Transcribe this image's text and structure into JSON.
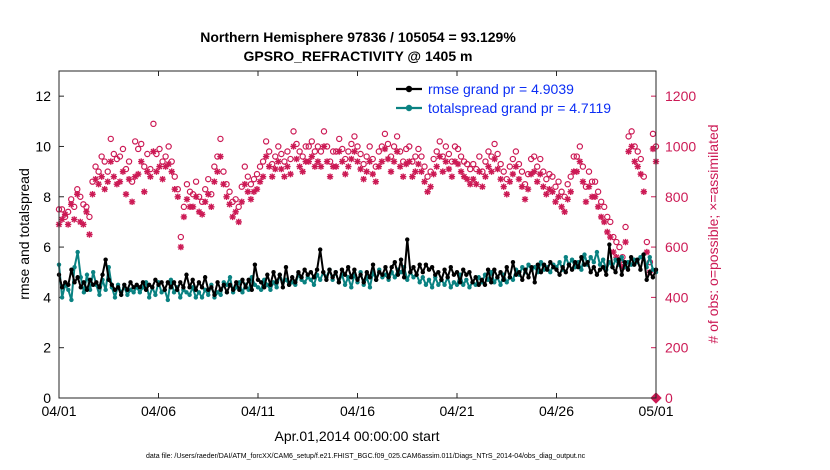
{
  "chart_data": {
    "type": "line",
    "title_line1": "Northern Hemisphere 97836 / 105054 = 93.129%",
    "title_line2": "GPSRO_REFRACTIVITY @ 1405 m",
    "xlabel": "Apr.01,2014 00:00:00 start",
    "ylabel_left": "rmse and totalspread",
    "ylabel_right": "# of obs: o=possible; ×=assimilated",
    "footer": "data file: /Users/raeder/DAI/ATM_forcXX/CAM6_setup/f.e21.FHIST_BGC.f09_025.CAM6assim.011/Diags_NTrS_2014-04/obs_diag_output.nc",
    "xlim": [
      0,
      30
    ],
    "ylim_left": [
      0,
      13
    ],
    "ylim_right": [
      0,
      1300
    ],
    "x_ticks": [
      {
        "v": 0,
        "label": "04/01"
      },
      {
        "v": 5,
        "label": "04/06"
      },
      {
        "v": 10,
        "label": "04/11"
      },
      {
        "v": 15,
        "label": "04/16"
      },
      {
        "v": 20,
        "label": "04/21"
      },
      {
        "v": 25,
        "label": "04/26"
      },
      {
        "v": 30,
        "label": "05/01"
      }
    ],
    "y_ticks_left": [
      "0",
      "2",
      "4",
      "6",
      "8",
      "10",
      "12"
    ],
    "y_ticks_right": [
      "0",
      "200",
      "400",
      "600",
      "800",
      "1000",
      "1200"
    ],
    "colors": {
      "rmse": "#000000",
      "spread": "#0a8282",
      "obs": "#cc1a55",
      "legend_text": "#0b2ef5"
    },
    "legend": [
      {
        "label": "rmse grand pr = 4.9039"
      },
      {
        "label": "totalspread grand pr = 4.7119"
      }
    ],
    "series_rmse": [
      4.9,
      4.4,
      4.6,
      4.5,
      5.1,
      4.6,
      4.8,
      4.4,
      4.6,
      4.3,
      4.7,
      4.5,
      4.6,
      4.4,
      4.9,
      5.5,
      4.7,
      4.5,
      4.3,
      4.4,
      4.1,
      4.5,
      4.3,
      4.6,
      4.4,
      4.5,
      4.4,
      4.6,
      4.3,
      4.5,
      4.4,
      4.7,
      4.5,
      4.6,
      4.3,
      4.6,
      4.4,
      4.6,
      4.3,
      4.6,
      4.4,
      4.9,
      4.4,
      4.7,
      4.3,
      4.6,
      4.4,
      4.8,
      4.3,
      4.4,
      4.1,
      4.6,
      4.3,
      4.5,
      4.2,
      4.5,
      4.3,
      4.6,
      4.3,
      4.7,
      4.4,
      4.7,
      4.3,
      5.3,
      4.7,
      4.6,
      4.4,
      4.9,
      4.5,
      5.0,
      4.6,
      4.9,
      4.4,
      5.2,
      4.5,
      4.8,
      4.6,
      5.0,
      4.8,
      5.1,
      4.9,
      5.0,
      4.8,
      5.1,
      5.9,
      5.0,
      4.7,
      5.1,
      4.8,
      5.0,
      4.6,
      5.1,
      4.9,
      5.2,
      4.8,
      5.1,
      4.7,
      4.9,
      4.6,
      5.0,
      4.8,
      5.3,
      4.7,
      5.0,
      4.9,
      5.2,
      4.8,
      5.2,
      5.4,
      4.9,
      5.5,
      4.8,
      6.3,
      5.0,
      5.2,
      4.9,
      5.3,
      5.0,
      5.3,
      5.1,
      5.2,
      4.9,
      5.0,
      4.7,
      5.1,
      4.8,
      5.2,
      4.9,
      5.0,
      4.6,
      5.1,
      4.9,
      5.0,
      4.6,
      4.8,
      4.5,
      4.7,
      4.5,
      5.1,
      4.6,
      5.1,
      4.8,
      5.0,
      4.7,
      5.2,
      4.8,
      5.4,
      4.9,
      5.0,
      4.7,
      5.1,
      4.8,
      5.2,
      4.6,
      5.3,
      5.0,
      5.3,
      5.1,
      5.4,
      5.2,
      5.1,
      4.9,
      5.2,
      5.0,
      5.3,
      5.1,
      5.4,
      5.2,
      5.6,
      5.3,
      5.4,
      5.0,
      5.2,
      4.9,
      5.1,
      5.2,
      4.9,
      6.1,
      5.2,
      5.0,
      5.5,
      4.9,
      5.4,
      5.1,
      5.6,
      5.3,
      5.5,
      5.1,
      5.7,
      4.7,
      5.0,
      4.8,
      5.1
    ],
    "series_spread": [
      5.3,
      4.0,
      4.5,
      4.3,
      3.9,
      5.2,
      5.8,
      4.8,
      4.2,
      4.9,
      4.3,
      5.0,
      4.5,
      4.1,
      4.7,
      4.3,
      5.2,
      4.4,
      4.0,
      4.5,
      4.2,
      4.4,
      4.1,
      4.3,
      4.2,
      4.4,
      4.2,
      4.4,
      4.6,
      4.0,
      4.4,
      4.1,
      4.6,
      4.2,
      4.3,
      3.9,
      4.7,
      4.2,
      4.4,
      4.0,
      4.3,
      4.2,
      4.1,
      4.4,
      4.0,
      4.2,
      4.0,
      4.3,
      4.1,
      4.5,
      4.0,
      4.2,
      4.1,
      4.6,
      4.5,
      4.8,
      4.2,
      4.4,
      4.6,
      4.2,
      4.5,
      4.3,
      4.8,
      4.5,
      4.4,
      4.3,
      4.7,
      4.5,
      4.3,
      4.6,
      4.4,
      4.9,
      4.6,
      4.7,
      4.5,
      4.6,
      4.5,
      4.9,
      4.7,
      4.6,
      4.8,
      4.7,
      4.5,
      4.9,
      4.7,
      5.0,
      4.8,
      5.1,
      4.7,
      5.0,
      4.6,
      4.9,
      4.5,
      4.8,
      4.4,
      4.9,
      4.6,
      5.0,
      4.5,
      4.8,
      4.4,
      5.0,
      4.7,
      5.1,
      4.8,
      4.9,
      4.7,
      5.0,
      4.8,
      5.1,
      5.0,
      5.2,
      4.7,
      5.0,
      4.8,
      4.9,
      4.6,
      4.8,
      4.5,
      4.7,
      4.4,
      4.8,
      4.5,
      4.7,
      4.5,
      4.8,
      4.4,
      4.6,
      4.5,
      4.9,
      4.5,
      4.7,
      4.4,
      4.6,
      4.5,
      4.8,
      4.6,
      4.9,
      4.7,
      5.0,
      4.6,
      4.8,
      4.5,
      4.9,
      4.6,
      4.8,
      4.7,
      5.1,
      4.9,
      5.2,
      5.0,
      5.3,
      5.1,
      5.2,
      5.0,
      5.4,
      5.1,
      5.2,
      5.0,
      5.3,
      5.2,
      5.4,
      5.1,
      5.6,
      5.3,
      5.5,
      5.2,
      5.4,
      5.1,
      5.7,
      5.3,
      5.6,
      5.4,
      5.8,
      5.3,
      5.5,
      5.1,
      5.4,
      5.2,
      5.5,
      5.3,
      5.6,
      5.2,
      5.4,
      5.3,
      5.5,
      5.4,
      5.6,
      5.7,
      5.2,
      5.6,
      5.1,
      5.0
    ],
    "series_possible": [
      750,
      750,
      720,
      740,
      790,
      760,
      830,
      800,
      770,
      760,
      720,
      860,
      920,
      900,
      960,
      940,
      900,
      1030,
      970,
      950,
      960,
      990,
      910,
      940,
      860,
      1020,
      990,
      1010,
      920,
      970,
      910,
      1090,
      970,
      990,
      940,
      960,
      1000,
      940,
      880,
      830,
      640,
      760,
      850,
      820,
      810,
      860,
      800,
      780,
      830,
      870,
      810,
      920,
      960,
      1030,
      900,
      850,
      820,
      780,
      790,
      760,
      840,
      920,
      880,
      850,
      870,
      890,
      920,
      940,
      1020,
      980,
      930,
      960,
      1000,
      970,
      940,
      980,
      950,
      1060,
      1010,
      980,
      960,
      1000,
      1000,
      1020,
      980,
      1000,
      980,
      1060,
      1000,
      940,
      980,
      980,
      1030,
      990,
      950,
      980,
      1010,
      1040,
      1000,
      970,
      930,
      960,
      1000,
      950,
      920,
      980,
      1000,
      1050,
      1010,
      960,
      1000,
      1040,
      980,
      940,
      990,
      1000,
      940,
      960,
      990,
      960,
      920,
      880,
      900,
      950,
      980,
      1020,
      960,
      1000,
      970,
      940,
      1000,
      990,
      960,
      940,
      930,
      910,
      930,
      910,
      960,
      900,
      940,
      980,
      960,
      1010,
      970,
      930,
      900,
      870,
      920,
      950,
      980,
      930,
      900,
      850,
      890,
      950,
      960,
      920,
      950,
      900,
      870,
      890,
      880,
      840,
      860,
      820,
      800,
      850,
      880,
      960,
      960,
      1000,
      920,
      840,
      900,
      860,
      860,
      820,
      780,
      760,
      720,
      700,
      640,
      620,
      600,
      560,
      680,
      1040,
      1060,
      1000,
      980,
      950,
      880,
      620,
      540,
      1050,
      1000
    ],
    "series_assimilated": [
      690,
      710,
      730,
      690,
      770,
      710,
      810,
      700,
      690,
      740,
      650,
      810,
      870,
      850,
      880,
      830,
      860,
      940,
      880,
      850,
      860,
      900,
      810,
      870,
      780,
      880,
      890,
      940,
      820,
      900,
      880,
      980,
      900,
      920,
      870,
      920,
      930,
      900,
      830,
      800,
      600,
      720,
      790,
      760,
      760,
      800,
      740,
      730,
      780,
      810,
      760,
      860,
      900,
      960,
      850,
      800,
      770,
      720,
      740,
      700,
      780,
      850,
      820,
      790,
      820,
      830,
      860,
      880,
      960,
      920,
      880,
      910,
      940,
      910,
      880,
      920,
      890,
      1000,
      950,
      920,
      900,
      940,
      940,
      960,
      920,
      940,
      920,
      1000,
      940,
      880,
      920,
      920,
      980,
      940,
      890,
      920,
      950,
      980,
      940,
      910,
      870,
      900,
      940,
      890,
      860,
      920,
      940,
      990,
      950,
      900,
      940,
      980,
      920,
      880,
      930,
      940,
      880,
      900,
      930,
      900,
      860,
      820,
      840,
      890,
      920,
      960,
      900,
      940,
      910,
      880,
      940,
      930,
      900,
      880,
      870,
      850,
      870,
      850,
      900,
      840,
      880,
      920,
      900,
      950,
      910,
      870,
      840,
      810,
      860,
      890,
      920,
      870,
      840,
      790,
      830,
      890,
      900,
      860,
      890,
      840,
      810,
      830,
      820,
      780,
      800,
      760,
      740,
      790,
      820,
      900,
      900,
      940,
      860,
      780,
      840,
      800,
      800,
      760,
      720,
      700,
      660,
      640,
      580,
      560,
      540,
      520,
      620,
      980,
      1000,
      940,
      920,
      890,
      820,
      580,
      500,
      990,
      940
    ],
    "end_marker": {
      "x": 30,
      "value": 0
    }
  }
}
